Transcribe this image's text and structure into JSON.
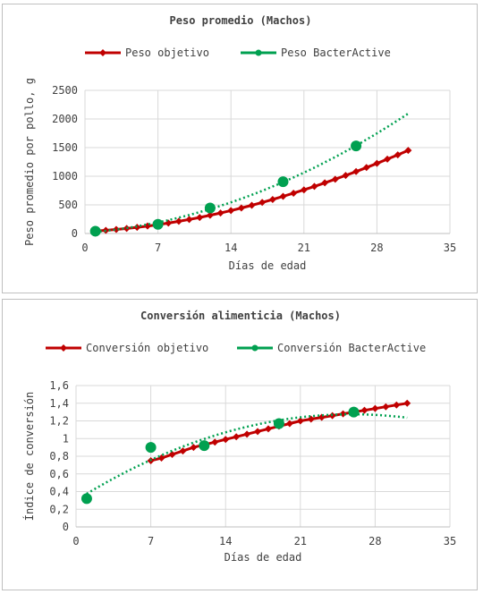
{
  "chart_data": [
    {
      "type": "line",
      "title": "Peso promedio (Machos)",
      "xlabel": "Días de edad",
      "ylabel": "Peso promedio por pollo, g",
      "xlim": [
        0,
        35
      ],
      "ylim": [
        0,
        2500
      ],
      "xticks": [
        0,
        7,
        14,
        21,
        28,
        35
      ],
      "xtick_labels": [
        "0",
        "7",
        "14",
        "21",
        "28",
        "35"
      ],
      "yticks": [
        0,
        500,
        1000,
        1500,
        2000,
        2500
      ],
      "ytick_labels": [
        "0",
        "500",
        "1000",
        "1500",
        "2000",
        "2500"
      ],
      "grid": true,
      "legend": "top",
      "series": [
        {
          "name": "Peso objetivo",
          "color": "#c00000",
          "marker": "diamond",
          "x": [
            1,
            2,
            3,
            4,
            5,
            6,
            7,
            8,
            9,
            10,
            11,
            12,
            13,
            14,
            15,
            16,
            17,
            18,
            19,
            20,
            21,
            22,
            23,
            24,
            25,
            26,
            27,
            28,
            29,
            30,
            31
          ],
          "y": [
            42,
            55,
            70,
            88,
            108,
            130,
            155,
            182,
            212,
            245,
            280,
            318,
            358,
            400,
            445,
            492,
            542,
            594,
            648,
            704,
            762,
            822,
            884,
            948,
            1014,
            1082,
            1152,
            1224,
            1298,
            1374,
            1452
          ]
        },
        {
          "name": "Peso BacterActive",
          "color": "#00a050",
          "marker": "circle",
          "trendline": "poly",
          "x": [
            1,
            7,
            12,
            19,
            26
          ],
          "y": [
            40,
            160,
            445,
            905,
            1530
          ]
        }
      ]
    },
    {
      "type": "line",
      "title": "Conversión alimenticia (Machos)",
      "xlabel": "Días de edad",
      "ylabel": "Índice de conversión",
      "xlim": [
        0,
        35
      ],
      "ylim": [
        0,
        1.6
      ],
      "xticks": [
        0,
        7,
        14,
        21,
        28,
        35
      ],
      "xtick_labels": [
        "0",
        "7",
        "14",
        "21",
        "28",
        "35"
      ],
      "yticks": [
        0,
        0.2,
        0.4,
        0.6,
        0.8,
        1,
        1.2,
        1.4,
        1.6
      ],
      "ytick_labels": [
        "0",
        "0,2",
        "0,4",
        "0,6",
        "0,8",
        "1",
        "1,2",
        "1,4",
        "1,6"
      ],
      "grid": true,
      "legend": "top",
      "series": [
        {
          "name": "Conversión objetivo",
          "color": "#c00000",
          "marker": "diamond",
          "x": [
            7,
            8,
            9,
            10,
            11,
            12,
            13,
            14,
            15,
            16,
            17,
            18,
            19,
            20,
            21,
            22,
            23,
            24,
            25,
            26,
            27,
            28,
            29,
            30,
            31
          ],
          "y": [
            0.75,
            0.78,
            0.82,
            0.86,
            0.9,
            0.93,
            0.96,
            0.99,
            1.02,
            1.05,
            1.08,
            1.11,
            1.14,
            1.17,
            1.2,
            1.22,
            1.24,
            1.26,
            1.28,
            1.3,
            1.32,
            1.34,
            1.36,
            1.38,
            1.4
          ]
        },
        {
          "name": "Conversión BacterActive",
          "color": "#00a050",
          "marker": "circle",
          "trendline": "poly",
          "x": [
            1,
            7,
            12,
            19,
            26
          ],
          "y": [
            0.32,
            0.9,
            0.92,
            1.17,
            1.3
          ]
        }
      ]
    }
  ]
}
